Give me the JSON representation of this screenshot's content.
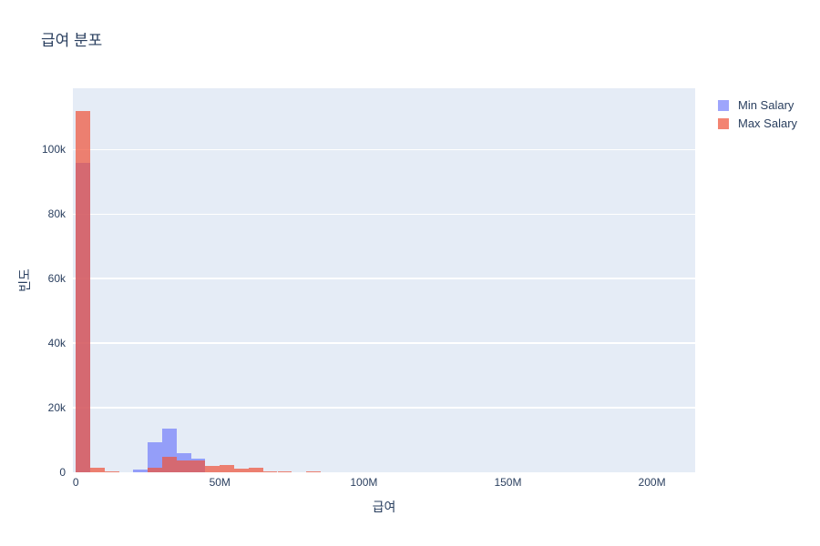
{
  "title": "급여 분포",
  "axes": {
    "x": {
      "title": "급여",
      "tick_labels": [
        "0",
        "50M",
        "100M",
        "150M",
        "200M"
      ],
      "tick_values": [
        0,
        50,
        100,
        150,
        200
      ]
    },
    "y": {
      "title": "빈도",
      "tick_labels": [
        "0",
        "20k",
        "40k",
        "60k",
        "80k",
        "100k"
      ],
      "tick_values": [
        0,
        20000,
        40000,
        60000,
        80000,
        100000
      ]
    }
  },
  "legend": [
    {
      "label": "Min Salary",
      "color": "rgba(99,110,250,0.62)"
    },
    {
      "label": "Max Salary",
      "color": "rgba(239,85,59,0.72)"
    }
  ],
  "colors": {
    "paper_background": "#ffffff",
    "plot_background": "#e5ecf6",
    "gridline": "#ffffff",
    "font": "#2a3f5f",
    "min_salary_base": "#636efa",
    "max_salary_base": "#ef553b",
    "overlap_visible": "#cd6b72"
  },
  "chart_data": {
    "type": "bar",
    "subtype": "overlaid-histograms",
    "title": "급여 분포",
    "xlabel": "급여",
    "ylabel": "빈도",
    "xlim_M": [
      -1,
      215
    ],
    "ylim": [
      0,
      119000
    ],
    "bin_width_M": 5,
    "grid": "horizontal-only",
    "legend_position": "right-top-outside",
    "series": [
      {
        "name": "Min Salary",
        "color": "rgba(99,110,250,0.62)",
        "bins": [
          {
            "start_M": 0,
            "count": 96000
          },
          {
            "start_M": 20,
            "count": 900
          },
          {
            "start_M": 25,
            "count": 9200
          },
          {
            "start_M": 30,
            "count": 13400
          },
          {
            "start_M": 35,
            "count": 5900
          },
          {
            "start_M": 40,
            "count": 4200
          }
        ]
      },
      {
        "name": "Max Salary",
        "color": "rgba(239,85,59,0.72)",
        "bins": [
          {
            "start_M": 0,
            "count": 112000
          },
          {
            "start_M": 5,
            "count": 1300
          },
          {
            "start_M": 10,
            "count": 400
          },
          {
            "start_M": 25,
            "count": 1500
          },
          {
            "start_M": 30,
            "count": 4900
          },
          {
            "start_M": 35,
            "count": 3800
          },
          {
            "start_M": 40,
            "count": 3800
          },
          {
            "start_M": 45,
            "count": 2100
          },
          {
            "start_M": 50,
            "count": 2400
          },
          {
            "start_M": 55,
            "count": 1000
          },
          {
            "start_M": 60,
            "count": 1400
          },
          {
            "start_M": 65,
            "count": 400
          },
          {
            "start_M": 70,
            "count": 400
          },
          {
            "start_M": 80,
            "count": 350
          }
        ]
      }
    ]
  }
}
